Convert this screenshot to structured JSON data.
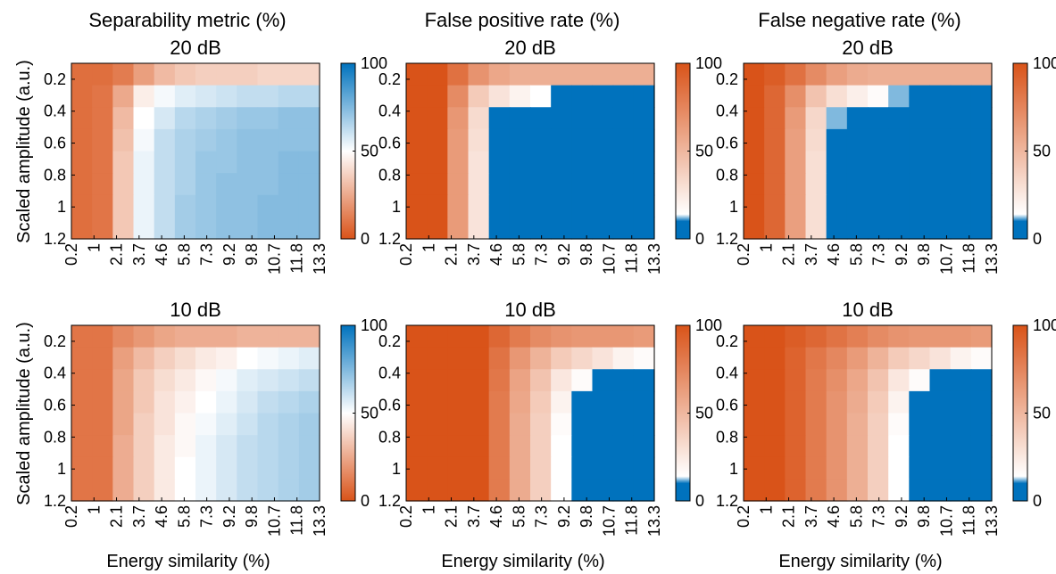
{
  "figure": {
    "column_titles": [
      "Separability metric (%)",
      "False positive rate (%)",
      "False negative rate (%)"
    ],
    "row_titles": [
      "20 dB",
      "10 dB"
    ],
    "ylabel": "Scaled amplitude (a.u.)",
    "xlabel": "Energy similarity (%)",
    "colors": {
      "orange": "#D95319",
      "white": "#FFFFFF",
      "blue": "#0072BD"
    }
  },
  "chart_data": [
    {
      "type": "heatmap",
      "title": "Separability metric (%)",
      "subtitle": "20 dB",
      "xlabel": "",
      "ylabel": "Scaled amplitude (a.u.)",
      "x_ticks": [
        "0.2",
        "1",
        "2.1",
        "3.7",
        "4.6",
        "5.8",
        "7.3",
        "9.2",
        "9.8",
        "10.7",
        "11.8",
        "13.3"
      ],
      "y_ticks": [
        "0.2",
        "0.4",
        "0.6",
        "0.8",
        "1",
        "1.2"
      ],
      "xlim": [
        0.2,
        13.3
      ],
      "ylim": [
        0.1,
        1.2
      ],
      "y_reversed": true,
      "colorbar": {
        "ticks": [
          "0",
          "50",
          "100"
        ],
        "range": [
          0,
          100
        ],
        "low_color": "#D95319",
        "high_color": "#0072BD"
      },
      "rows": [
        [
          8,
          8,
          12,
          22,
          30,
          34,
          36,
          36,
          36,
          38,
          38,
          38
        ],
        [
          8,
          10,
          25,
          45,
          52,
          56,
          58,
          60,
          62,
          62,
          64,
          64
        ],
        [
          8,
          10,
          30,
          50,
          58,
          64,
          66,
          68,
          70,
          70,
          72,
          72
        ],
        [
          8,
          10,
          32,
          52,
          62,
          66,
          68,
          70,
          72,
          72,
          72,
          72
        ],
        [
          8,
          10,
          34,
          54,
          62,
          66,
          70,
          70,
          72,
          72,
          74,
          74
        ],
        [
          8,
          10,
          34,
          54,
          62,
          66,
          70,
          72,
          72,
          72,
          74,
          74
        ],
        [
          8,
          10,
          34,
          54,
          62,
          68,
          70,
          72,
          72,
          74,
          74,
          74
        ],
        [
          8,
          10,
          34,
          54,
          62,
          68,
          70,
          72,
          72,
          74,
          74,
          74
        ]
      ]
    },
    {
      "type": "heatmap",
      "title": "False positive rate (%)",
      "subtitle": "20 dB",
      "xlabel": "",
      "ylabel": "",
      "x_ticks": [
        "0.2",
        "1",
        "2.1",
        "3.7",
        "4.6",
        "5.8",
        "7.3",
        "9.2",
        "9.8",
        "10.7",
        "11.8",
        "13.3"
      ],
      "y_ticks": [
        "0.2",
        "0.4",
        "0.6",
        "0.8",
        "1",
        "1.2"
      ],
      "xlim": [
        0.2,
        13.3
      ],
      "ylim": [
        0.1,
        1.2
      ],
      "y_reversed": true,
      "colorbar": {
        "ticks": [
          "0",
          "50",
          "100"
        ],
        "range": [
          0,
          100
        ],
        "low_color": "#0072BD",
        "high_color": "#D95319"
      },
      "rows": [
        [
          100,
          100,
          85,
          68,
          58,
          54,
          54,
          54,
          54,
          54,
          54,
          54
        ],
        [
          100,
          100,
          72,
          40,
          28,
          20,
          14,
          10,
          6,
          6,
          4,
          4
        ],
        [
          100,
          100,
          66,
          32,
          10,
          4,
          2,
          0,
          0,
          0,
          0,
          0
        ],
        [
          100,
          100,
          64,
          30,
          4,
          0,
          0,
          0,
          0,
          0,
          0,
          0
        ],
        [
          100,
          100,
          64,
          28,
          4,
          0,
          0,
          0,
          0,
          0,
          0,
          0
        ],
        [
          100,
          100,
          64,
          28,
          4,
          0,
          0,
          0,
          0,
          0,
          0,
          0
        ],
        [
          100,
          100,
          64,
          28,
          4,
          0,
          0,
          0,
          0,
          0,
          0,
          0
        ],
        [
          100,
          100,
          64,
          28,
          4,
          0,
          0,
          0,
          0,
          0,
          0,
          0
        ]
      ]
    },
    {
      "type": "heatmap",
      "title": "False negative rate (%)",
      "subtitle": "20 dB",
      "xlabel": "",
      "ylabel": "",
      "x_ticks": [
        "0.2",
        "1",
        "2.1",
        "3.7",
        "4.6",
        "5.8",
        "7.3",
        "9.2",
        "9.8",
        "10.7",
        "11.8",
        "13.3"
      ],
      "y_ticks": [
        "0.2",
        "0.4",
        "0.6",
        "0.8",
        "1",
        "1.2"
      ],
      "xlim": [
        0.2,
        13.3
      ],
      "ylim": [
        0.1,
        1.2
      ],
      "y_reversed": true,
      "colorbar": {
        "ticks": [
          "0",
          "50",
          "100"
        ],
        "range": [
          0,
          100
        ],
        "low_color": "#0072BD",
        "high_color": "#D95319"
      },
      "rows": [
        [
          100,
          95,
          85,
          72,
          62,
          56,
          54,
          54,
          54,
          54,
          54,
          54
        ],
        [
          100,
          90,
          70,
          44,
          30,
          22,
          16,
          12,
          8,
          6,
          4,
          4
        ],
        [
          100,
          90,
          64,
          34,
          12,
          4,
          2,
          0,
          0,
          0,
          0,
          0
        ],
        [
          100,
          90,
          62,
          32,
          6,
          0,
          0,
          0,
          0,
          0,
          0,
          0
        ],
        [
          100,
          90,
          62,
          30,
          6,
          0,
          0,
          0,
          0,
          0,
          0,
          0
        ],
        [
          100,
          90,
          62,
          30,
          6,
          0,
          0,
          0,
          0,
          0,
          0,
          0
        ],
        [
          100,
          90,
          62,
          30,
          6,
          0,
          0,
          0,
          0,
          0,
          0,
          0
        ],
        [
          100,
          90,
          62,
          30,
          6,
          0,
          0,
          0,
          0,
          0,
          0,
          0
        ]
      ]
    },
    {
      "type": "heatmap",
      "title": "",
      "subtitle": "10 dB",
      "xlabel": "Energy similarity (%)",
      "ylabel": "Scaled amplitude (a.u.)",
      "x_ticks": [
        "0.2",
        "1",
        "2.1",
        "3.7",
        "4.6",
        "5.8",
        "7.3",
        "9.2",
        "9.8",
        "10.7",
        "11.8",
        "13.3"
      ],
      "y_ticks": [
        "0.2",
        "0.4",
        "0.6",
        "0.8",
        "1",
        "1.2"
      ],
      "xlim": [
        0.2,
        13.3
      ],
      "ylim": [
        0.1,
        1.2
      ],
      "y_reversed": true,
      "colorbar": {
        "ticks": [
          "0",
          "50",
          "100"
        ],
        "range": [
          0,
          100
        ],
        "low_color": "#D95319",
        "high_color": "#0072BD"
      },
      "rows": [
        [
          10,
          10,
          16,
          20,
          24,
          26,
          26,
          26,
          28,
          28,
          28,
          28
        ],
        [
          10,
          10,
          22,
          30,
          36,
          40,
          44,
          46,
          50,
          52,
          54,
          56
        ],
        [
          10,
          10,
          24,
          34,
          40,
          44,
          48,
          52,
          56,
          58,
          60,
          62
        ],
        [
          10,
          10,
          24,
          34,
          42,
          46,
          50,
          54,
          58,
          62,
          64,
          66
        ],
        [
          10,
          10,
          24,
          36,
          42,
          48,
          52,
          56,
          60,
          64,
          66,
          68
        ],
        [
          10,
          10,
          26,
          36,
          44,
          48,
          54,
          58,
          62,
          64,
          66,
          68
        ],
        [
          10,
          10,
          26,
          36,
          44,
          50,
          54,
          58,
          62,
          64,
          66,
          68
        ],
        [
          10,
          10,
          26,
          36,
          44,
          50,
          54,
          58,
          62,
          64,
          66,
          68
        ]
      ]
    },
    {
      "type": "heatmap",
      "title": "",
      "subtitle": "10 dB",
      "xlabel": "Energy similarity (%)",
      "ylabel": "",
      "x_ticks": [
        "0.2",
        "1",
        "2.1",
        "3.7",
        "4.6",
        "5.8",
        "7.3",
        "9.2",
        "9.8",
        "10.7",
        "11.8",
        "13.3"
      ],
      "y_ticks": [
        "0.2",
        "0.4",
        "0.6",
        "0.8",
        "1",
        "1.2"
      ],
      "xlim": [
        0.2,
        13.3
      ],
      "ylim": [
        0.1,
        1.2
      ],
      "y_reversed": true,
      "colorbar": {
        "ticks": [
          "0",
          "50",
          "100"
        ],
        "range": [
          0,
          100
        ],
        "low_color": "#0072BD",
        "high_color": "#D95319"
      },
      "rows": [
        [
          100,
          100,
          100,
          100,
          90,
          80,
          72,
          68,
          66,
          66,
          66,
          64
        ],
        [
          100,
          100,
          100,
          100,
          84,
          66,
          52,
          40,
          34,
          28,
          20,
          16
        ],
        [
          100,
          100,
          100,
          100,
          82,
          60,
          44,
          26,
          16,
          10,
          6,
          4
        ],
        [
          100,
          100,
          100,
          100,
          80,
          58,
          40,
          20,
          8,
          2,
          0,
          0
        ],
        [
          100,
          100,
          100,
          100,
          80,
          56,
          38,
          16,
          4,
          0,
          0,
          0
        ],
        [
          100,
          100,
          100,
          100,
          80,
          56,
          38,
          14,
          2,
          0,
          0,
          0
        ],
        [
          100,
          100,
          100,
          100,
          80,
          56,
          38,
          14,
          2,
          0,
          0,
          0
        ],
        [
          100,
          100,
          100,
          100,
          80,
          56,
          38,
          14,
          2,
          0,
          0,
          0
        ]
      ]
    },
    {
      "type": "heatmap",
      "title": "",
      "subtitle": "10 dB",
      "xlabel": "Energy similarity (%)",
      "ylabel": "",
      "x_ticks": [
        "0.2",
        "1",
        "2.1",
        "3.7",
        "4.6",
        "5.8",
        "7.3",
        "9.2",
        "9.8",
        "10.7",
        "11.8",
        "13.3"
      ],
      "y_ticks": [
        "0.2",
        "0.4",
        "0.6",
        "0.8",
        "1",
        "1.2"
      ],
      "xlim": [
        0.2,
        13.3
      ],
      "ylim": [
        0.1,
        1.2
      ],
      "y_reversed": true,
      "colorbar": {
        "ticks": [
          "0",
          "50",
          "100"
        ],
        "range": [
          0,
          100
        ],
        "low_color": "#0072BD",
        "high_color": "#D95319"
      },
      "rows": [
        [
          100,
          100,
          95,
          90,
          84,
          78,
          72,
          68,
          66,
          66,
          66,
          64
        ],
        [
          100,
          100,
          92,
          82,
          74,
          64,
          52,
          40,
          34,
          28,
          20,
          16
        ],
        [
          100,
          100,
          92,
          80,
          70,
          58,
          44,
          26,
          16,
          10,
          6,
          4
        ],
        [
          100,
          100,
          92,
          80,
          68,
          56,
          40,
          20,
          8,
          2,
          0,
          0
        ],
        [
          100,
          100,
          92,
          80,
          68,
          54,
          38,
          16,
          4,
          0,
          0,
          0
        ],
        [
          100,
          100,
          92,
          80,
          68,
          54,
          38,
          14,
          2,
          0,
          0,
          0
        ],
        [
          100,
          100,
          92,
          80,
          68,
          54,
          38,
          14,
          2,
          0,
          0,
          0
        ],
        [
          100,
          100,
          92,
          80,
          68,
          54,
          38,
          14,
          2,
          0,
          0,
          0
        ]
      ]
    }
  ]
}
